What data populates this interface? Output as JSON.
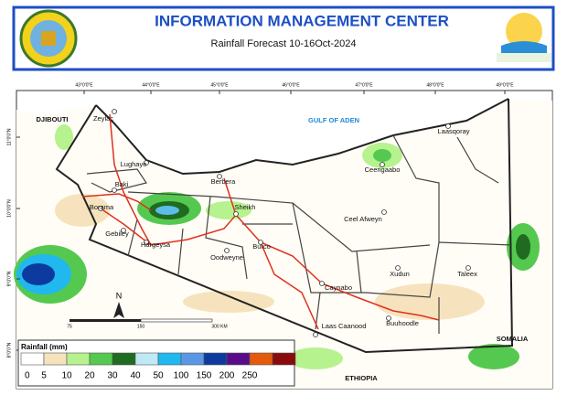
{
  "header": {
    "title": "INFORMATION MANAGEMENT CENTER",
    "subtitle": "Rainfall Forecast 10-16Oct-2024"
  },
  "map": {
    "longitudes": [
      "43°0'0\"E",
      "44°0'0\"E",
      "45°0'0\"E",
      "46°0'0\"E",
      "47°0'0\"E",
      "48°0'0\"E",
      "49°0'0\"E"
    ],
    "latitudes": [
      "11°0'0\"N",
      "10°0'0\"N",
      "9°0'0\"N",
      "8°0'0\"N"
    ],
    "regions": [
      "DJIBOUTI",
      "GULF OF ADEN",
      "SOMALIA",
      "ETHIOPIA"
    ],
    "places": [
      "Zeylac",
      "Lughaye",
      "Baki",
      "Borama",
      "Gebiley",
      "Hargeysa",
      "Berbera",
      "Sheikh",
      "Oodweyne",
      "Burco",
      "Ceerigaabo",
      "Laasqoray",
      "Ceel Afweyn",
      "Xudun",
      "Taleex",
      "Caynabo",
      "Buuhoodle",
      "Laas Caanood"
    ],
    "scale": [
      "75",
      "150",
      "300 KM"
    ],
    "north": "N"
  },
  "legend": {
    "title": "Rainfall (mm)",
    "labels": [
      "0",
      "5",
      "10",
      "20",
      "30",
      "40",
      "50",
      "100",
      "150",
      "200",
      "250"
    ],
    "colors": [
      "#ffffff",
      "#f6e3bd",
      "#b6f28e",
      "#55c94f",
      "#1f6b1f",
      "#bfe9f5",
      "#20b8ee",
      "#5b97e4",
      "#0d3a9e",
      "#5a0b8a",
      "#e35a0c",
      "#8a0b0b"
    ]
  }
}
